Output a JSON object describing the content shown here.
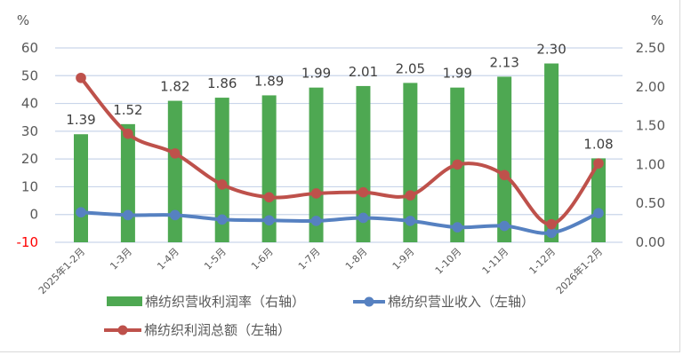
{
  "chart_data": {
    "type": "bar+line",
    "title": "",
    "left_axis": {
      "unit": "%",
      "min": -10,
      "max": 60,
      "step": 10,
      "ticks": [
        "60",
        "50",
        "40",
        "30",
        "20",
        "10",
        "0",
        "-10"
      ]
    },
    "right_axis": {
      "unit": "%",
      "min": 0,
      "max": 2.5,
      "step": 0.5,
      "ticks": [
        "2.50",
        "2.00",
        "1.50",
        "1.00",
        "0.50",
        "0.00"
      ]
    },
    "categories": [
      "2025年1-2月",
      "1-3月",
      "1-4月",
      "1-5月",
      "1-6月",
      "1-7月",
      "1-8月",
      "1-9月",
      "1-10月",
      "1-11月",
      "1-12月",
      "2026年1-2月"
    ],
    "series": [
      {
        "name": "棉纺织营收利润率（右轴）",
        "type": "bar",
        "axis": "right",
        "color": "#4EA852",
        "values": [
          1.39,
          1.52,
          1.82,
          1.86,
          1.89,
          1.99,
          2.01,
          2.05,
          1.99,
          2.13,
          2.3,
          1.08
        ],
        "labels": [
          "1.39",
          "1.52",
          "1.82",
          "1.86",
          "1.89",
          "1.99",
          "2.01",
          "2.05",
          "1.99",
          "2.13",
          "2.30",
          "1.08"
        ]
      },
      {
        "name": "棉纺织营业收入（左轴）",
        "type": "line",
        "axis": "left",
        "color": "#5681C1",
        "values": [
          0.8,
          -0.2,
          -0.2,
          -1.8,
          -2.1,
          -2.3,
          -1.2,
          -2.3,
          -4.6,
          -4.1,
          -6.6,
          0.5
        ]
      },
      {
        "name": "棉纺织利润总额（左轴）",
        "type": "line",
        "axis": "left",
        "color": "#BE514B",
        "values": [
          49.2,
          29.1,
          22.0,
          10.8,
          6.2,
          7.6,
          8.0,
          6.9,
          18.0,
          14.2,
          -3.5,
          18.4
        ]
      }
    ],
    "grid": true,
    "legend_position": "bottom"
  },
  "legend": {
    "items": [
      {
        "label": "棉纺织营收利润率（右轴）",
        "color": "#4EA852",
        "kind": "bar"
      },
      {
        "label": "棉纺织营业收入（左轴）",
        "color": "#5681C1",
        "kind": "line-marker"
      },
      {
        "label": "棉纺织利润总额（左轴）",
        "color": "#BE514B",
        "kind": "line-marker"
      }
    ]
  }
}
